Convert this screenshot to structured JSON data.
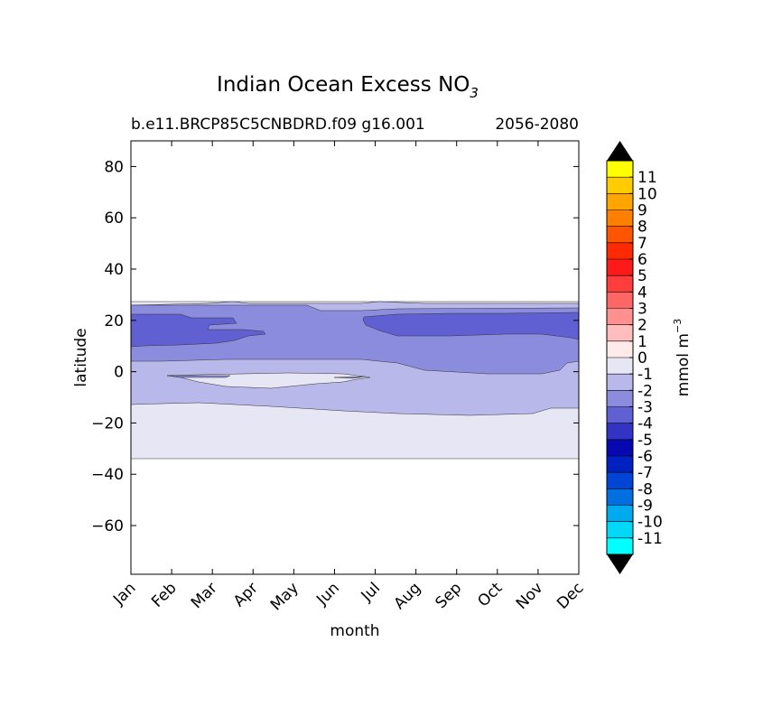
{
  "chart_data": {
    "type": "filled-contour",
    "title": "Indian Ocean Excess NO",
    "title_subscript": "3",
    "subtitle_left": "b.e11.BRCP85C5CNBDRD.f09 g16.001",
    "subtitle_right": "2056-2080",
    "xlabel": "month",
    "ylabel": "latitude",
    "x_ticks": [
      "Jan",
      "Feb",
      "Mar",
      "Apr",
      "May",
      "Jun",
      "Jul",
      "Aug",
      "Sep",
      "Oct",
      "Nov",
      "Dec"
    ],
    "y_ticks": [
      80,
      60,
      40,
      20,
      0,
      -20,
      -40,
      -60
    ],
    "y_tick_labels": [
      "80",
      "60",
      "40",
      "20",
      "0",
      "−20",
      "−40",
      "−60"
    ],
    "ylim": [
      -79,
      90
    ],
    "xlim": [
      0,
      11
    ],
    "colorbar": {
      "label": "mmol m",
      "label_superscript": "−3",
      "levels": [
        11,
        10,
        9,
        8,
        7,
        6,
        5,
        4,
        3,
        2,
        1,
        0,
        -1,
        -2,
        -3,
        -4,
        -5,
        -6,
        -7,
        -8,
        -9,
        -10,
        -11
      ],
      "level_labels": [
        "11",
        "10",
        "9",
        "8",
        "7",
        "6",
        "5",
        "4",
        "3",
        "2",
        "1",
        "0",
        "-1",
        "-2",
        "-3",
        "-4",
        "-5",
        "-6",
        "-7",
        "-8",
        "-9",
        "-10",
        "-11"
      ],
      "colors": [
        "#ffff00",
        "#ffcc00",
        "#ffa500",
        "#ff8000",
        "#ff5500",
        "#ff2a00",
        "#ff1a1a",
        "#ff3d3d",
        "#ff6666",
        "#ff9090",
        "#ffbdbd",
        "#ffeaea",
        "#e6e6f5",
        "#b8b8ea",
        "#8c8cde",
        "#6060d2",
        "#3333c4",
        "#0808b0",
        "#0020c0",
        "#0046d6",
        "#0070e0",
        "#00aaee",
        "#00d8f8",
        "#00ffff"
      ],
      "over_color": "#000000",
      "under_color": "#000000"
    },
    "regions": [
      {
        "name": "0 to -1",
        "level": "0",
        "color": "#e6e6f5",
        "description": "thin band near 27N, broad band south of -12 to -33"
      },
      {
        "name": "-1 to -2",
        "level": "-1",
        "color": "#b8b8ea",
        "description": "band around 0 to -15 latitude"
      },
      {
        "name": "-2 to -3",
        "level": "-2",
        "color": "#8c8cde",
        "description": "band between 5 and 25 latitude"
      },
      {
        "name": "-3 to -4",
        "level": "-3",
        "color": "#6060d2",
        "description": "patches near 10-22 latitude Jan-Apr and Jul-Dec"
      }
    ],
    "data_extent_latitude": [
      -33,
      27
    ]
  }
}
